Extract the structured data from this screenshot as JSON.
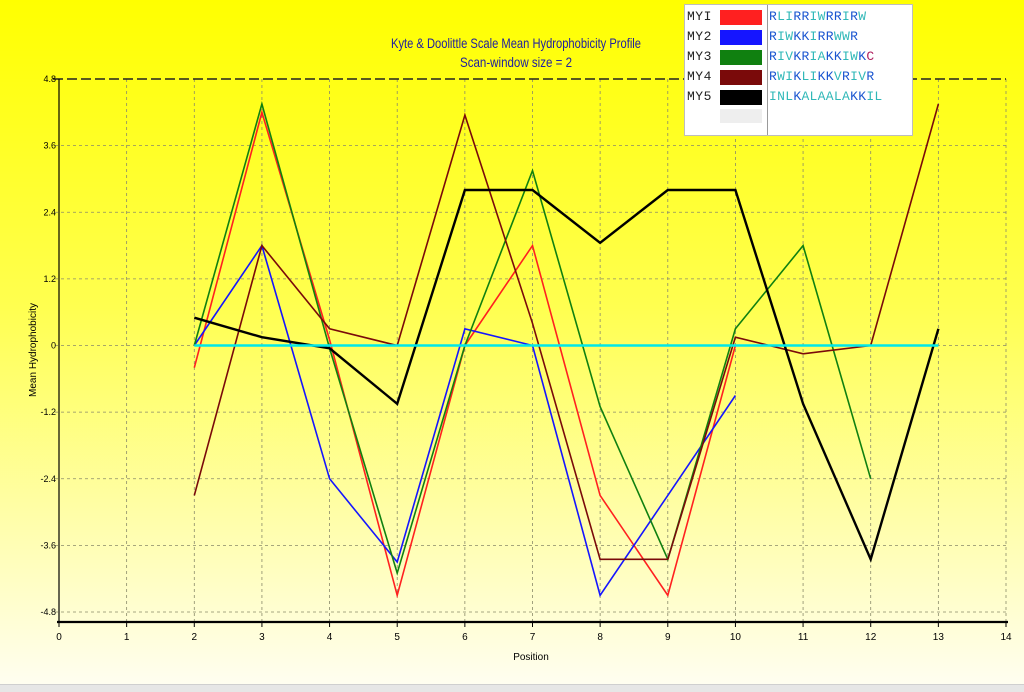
{
  "chart_data": {
    "type": "line",
    "title": "Kyte & Doolittle Scale Mean Hydrophobicity Profile",
    "subtitle": "Scan-window size = 2",
    "xlabel": "Position",
    "ylabel": "Mean Hydrophobicity",
    "xlim": [
      0,
      14
    ],
    "ylim": [
      -4.8,
      4.8
    ],
    "x_ticks": [
      "0",
      "1",
      "2",
      "3",
      "4",
      "5",
      "6",
      "7",
      "8",
      "9",
      "10",
      "11",
      "12",
      "13",
      "14"
    ],
    "y_ticks": [
      "4.8",
      "3.6",
      "2.4",
      "1.2",
      "0",
      "-1.2",
      "-2.4",
      "-3.6",
      "-4.8"
    ],
    "grid": true,
    "legend_position": "top-right",
    "series": [
      {
        "name": "MYI",
        "color": "#ff2020",
        "x": [
          2,
          3,
          4,
          5,
          6,
          7,
          8,
          9,
          10
        ],
        "y": [
          -0.4,
          4.2,
          0.1,
          -4.5,
          0.0,
          1.8,
          -2.7,
          -4.5,
          0.0
        ]
      },
      {
        "name": "MY2",
        "color": "#1515ff",
        "x": [
          2,
          3,
          4,
          5,
          6,
          7,
          8,
          9,
          10
        ],
        "y": [
          0.0,
          1.8,
          -2.4,
          -3.9,
          0.3,
          0.0,
          -4.5,
          -2.7,
          -0.9
        ]
      },
      {
        "name": "MY3",
        "color": "#108010",
        "x": [
          2,
          3,
          4,
          5,
          6,
          7,
          8,
          9,
          10,
          11,
          12
        ],
        "y": [
          0.0,
          4.35,
          -0.05,
          -4.1,
          0.0,
          3.15,
          -1.1,
          -3.85,
          0.3,
          1.8,
          -2.4
        ]
      },
      {
        "name": "MY4",
        "color": "#7a0a0a",
        "x": [
          2,
          3,
          4,
          5,
          6,
          7,
          8,
          9,
          10,
          11,
          12,
          13
        ],
        "y": [
          -2.7,
          1.8,
          0.3,
          0.0,
          4.15,
          0.4,
          -3.85,
          -3.85,
          0.15,
          -0.15,
          0.0,
          4.35
        ]
      },
      {
        "name": "MY5",
        "color": "#000000",
        "x": [
          2,
          3,
          4,
          5,
          6,
          7,
          8,
          9,
          10,
          11,
          12,
          13
        ],
        "y": [
          0.5,
          0.15,
          -0.05,
          -1.05,
          2.8,
          2.8,
          1.85,
          2.8,
          2.8,
          -1.05,
          -3.85,
          0.3
        ]
      },
      {
        "color": "#00e8e8",
        "x": [
          2,
          13
        ],
        "y": [
          0.0,
          0.0
        ]
      }
    ]
  },
  "legend": [
    {
      "name": "MYI",
      "color": "#ff2020",
      "sequence": "RLIRRIWRRIRW",
      "seq_colors": [
        "#1a55d0",
        "#30b8b8",
        "#30b8b8",
        "#1a55d0",
        "#1a55d0",
        "#30b8b8",
        "#30b8b8",
        "#1a55d0",
        "#1a55d0",
        "#30b8b8",
        "#1a55d0",
        "#30b8b8"
      ]
    },
    {
      "name": "MY2",
      "color": "#1515ff",
      "sequence": "RIWKKIRRWWR",
      "seq_colors": [
        "#1a55d0",
        "#30b8b8",
        "#30b8b8",
        "#1a55d0",
        "#1a55d0",
        "#30b8b8",
        "#1a55d0",
        "#1a55d0",
        "#30b8b8",
        "#30b8b8",
        "#1a55d0"
      ]
    },
    {
      "name": "MY3",
      "color": "#108010",
      "sequence": "RIVKRIAKKIWKC",
      "seq_colors": [
        "#1a55d0",
        "#30b8b8",
        "#30b8b8",
        "#1a55d0",
        "#1a55d0",
        "#30b8b8",
        "#30b8b8",
        "#1a55d0",
        "#1a55d0",
        "#30b8b8",
        "#30b8b8",
        "#1a55d0",
        "#b02060"
      ]
    },
    {
      "name": "MY4",
      "color": "#7a0a0a",
      "sequence": "RWIKLIKKVRIVR",
      "seq_colors": [
        "#1a55d0",
        "#30b8b8",
        "#30b8b8",
        "#1a55d0",
        "#30b8b8",
        "#30b8b8",
        "#1a55d0",
        "#1a55d0",
        "#30b8b8",
        "#1a55d0",
        "#30b8b8",
        "#30b8b8",
        "#1a55d0"
      ]
    },
    {
      "name": "MY5",
      "color": "#000000",
      "sequence": "INLKALAALAKKIL",
      "seq_colors": [
        "#30b8b8",
        "#30b8b8",
        "#30b8b8",
        "#1a55d0",
        "#30b8b8",
        "#30b8b8",
        "#30b8b8",
        "#30b8b8",
        "#30b8b8",
        "#30b8b8",
        "#1a55d0",
        "#1a55d0",
        "#30b8b8",
        "#30b8b8"
      ]
    }
  ],
  "colors": {
    "background_top": "#ffff00",
    "background_bottom": "#fffef0",
    "grid": "#8a8a6a",
    "title": "#2020a0"
  }
}
